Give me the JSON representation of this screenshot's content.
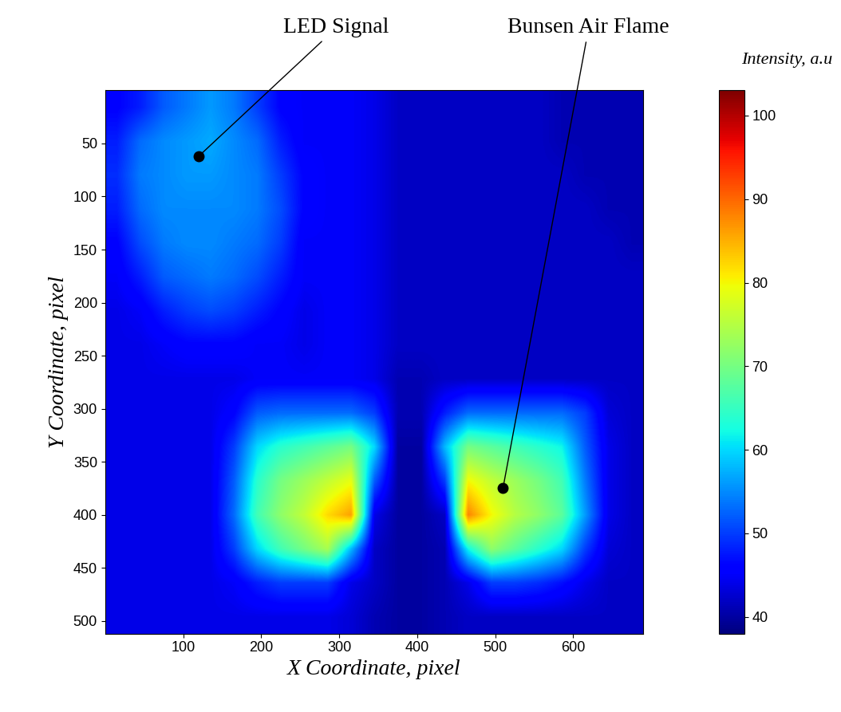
{
  "chart_data": {
    "type": "heatmap",
    "x_label": "X Coordinate, pixel",
    "y_label": "Y Coordinate, pixel",
    "colorbar_label": "Intensity, a.u",
    "color": "jet",
    "xlim": [
      0,
      690
    ],
    "ylim": [
      512,
      0
    ],
    "xticks": [
      100,
      200,
      300,
      400,
      500,
      600
    ],
    "yticks": [
      50,
      100,
      150,
      200,
      250,
      300,
      350,
      400,
      450,
      500
    ],
    "color_range": [
      38,
      103
    ],
    "color_ticks": [
      40,
      50,
      60,
      70,
      80,
      90,
      100
    ],
    "annotations": [
      {
        "text": "LED Signal",
        "x": 120,
        "y": 62
      },
      {
        "text": "Bunsen Air Flame",
        "x": 510,
        "y": 375
      }
    ],
    "x": [
      15,
      45,
      75,
      105,
      135,
      165,
      195,
      225,
      255,
      285,
      315,
      345,
      375,
      405,
      435,
      465,
      495,
      525,
      555,
      585,
      615,
      645,
      675
    ],
    "y": [
      16,
      48,
      80,
      112,
      144,
      176,
      208,
      240,
      272,
      304,
      336,
      368,
      400,
      432,
      464,
      496
    ],
    "cells": [
      [
        46,
        48,
        52,
        54,
        56,
        54,
        50,
        46,
        45,
        45,
        45,
        44,
        42,
        42,
        42,
        42,
        42,
        42,
        42,
        41,
        41,
        41,
        41
      ],
      [
        48,
        53,
        55,
        56,
        57,
        55,
        53,
        48,
        45,
        45,
        45,
        44,
        42,
        42,
        42,
        42,
        42,
        42,
        42,
        41,
        41,
        41,
        41
      ],
      [
        49,
        54,
        55,
        56,
        56,
        55,
        54,
        50,
        46,
        45,
        45,
        44,
        42,
        42,
        42,
        42,
        42,
        42,
        42,
        42,
        41,
        41,
        41
      ],
      [
        48,
        53,
        55,
        55,
        55,
        55,
        54,
        51,
        46,
        45,
        45,
        44,
        42,
        42,
        42,
        42,
        42,
        42,
        42,
        42,
        42,
        41,
        41
      ],
      [
        46,
        51,
        54,
        55,
        55,
        54,
        53,
        50,
        45,
        45,
        45,
        44,
        42,
        42,
        42,
        42,
        42,
        42,
        42,
        42,
        42,
        42,
        41
      ],
      [
        45,
        48,
        52,
        53,
        54,
        53,
        51,
        48,
        45,
        45,
        45,
        44,
        42,
        42,
        42,
        42,
        42,
        42,
        42,
        42,
        42,
        42,
        42
      ],
      [
        44,
        45,
        48,
        50,
        51,
        50,
        48,
        46,
        44,
        45,
        45,
        44,
        42,
        42,
        42,
        42,
        42,
        42,
        42,
        42,
        42,
        42,
        42
      ],
      [
        44,
        44,
        45,
        46,
        46,
        46,
        45,
        45,
        44,
        45,
        45,
        44,
        42,
        42,
        42,
        42,
        42,
        42,
        42,
        42,
        42,
        42,
        42
      ],
      [
        44,
        44,
        44,
        44,
        44,
        44,
        45,
        45,
        45,
        45,
        45,
        44,
        41,
        41,
        42,
        42,
        42,
        42,
        42,
        42,
        42,
        42,
        42
      ],
      [
        44,
        44,
        44,
        44,
        44,
        46,
        52,
        53,
        53,
        53,
        53,
        50,
        41,
        41,
        48,
        53,
        53,
        53,
        53,
        53,
        50,
        43,
        42
      ],
      [
        44,
        44,
        44,
        44,
        44,
        50,
        60,
        64,
        66,
        68,
        70,
        60,
        40,
        40,
        58,
        70,
        68,
        66,
        64,
        62,
        52,
        44,
        42
      ],
      [
        44,
        44,
        44,
        44,
        44,
        52,
        64,
        70,
        73,
        76,
        79,
        52,
        40,
        40,
        50,
        80,
        76,
        73,
        70,
        66,
        54,
        44,
        42
      ],
      [
        44,
        44,
        44,
        44,
        44,
        53,
        66,
        72,
        76,
        82,
        86,
        44,
        40,
        40,
        42,
        88,
        80,
        75,
        72,
        68,
        56,
        44,
        42
      ],
      [
        44,
        44,
        44,
        44,
        44,
        50,
        60,
        66,
        70,
        74,
        58,
        42,
        40,
        40,
        41,
        62,
        72,
        68,
        64,
        60,
        50,
        43,
        42
      ],
      [
        44,
        44,
        44,
        44,
        44,
        45,
        48,
        50,
        50,
        50,
        44,
        42,
        40,
        40,
        41,
        44,
        50,
        50,
        49,
        47,
        44,
        42,
        42
      ],
      [
        44,
        44,
        44,
        44,
        44,
        44,
        44,
        44,
        44,
        44,
        43,
        41,
        40,
        40,
        41,
        42,
        42,
        42,
        42,
        42,
        42,
        42,
        42
      ]
    ]
  }
}
